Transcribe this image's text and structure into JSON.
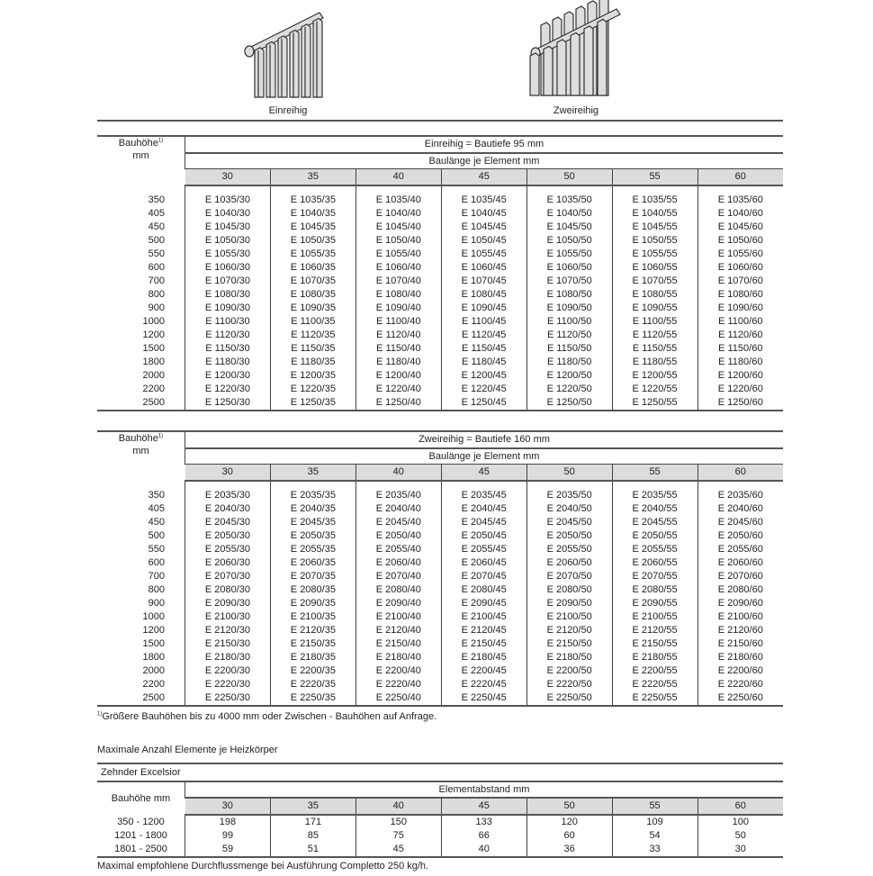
{
  "figures": {
    "single_label": "Einreihig",
    "double_label": "Zweireihig"
  },
  "table1": {
    "rowhead": "Bauhöhe",
    "rowhead_sup": "1)",
    "rowhead_unit": "mm",
    "title": "Einreihig = Bautiefe 95 mm",
    "subtitle": "Baulänge je Element mm",
    "cols": [
      "30",
      "35",
      "40",
      "45",
      "50",
      "55",
      "60"
    ],
    "rows": [
      [
        "350",
        "E 1035/30",
        "E 1035/35",
        "E 1035/40",
        "E 1035/45",
        "E 1035/50",
        "E 1035/55",
        "E 1035/60"
      ],
      [
        "405",
        "E 1040/30",
        "E 1040/35",
        "E 1040/40",
        "E 1040/45",
        "E 1040/50",
        "E 1040/55",
        "E 1040/60"
      ],
      [
        "450",
        "E 1045/30",
        "E 1045/35",
        "E 1045/40",
        "E 1045/45",
        "E 1045/50",
        "E 1045/55",
        "E 1045/60"
      ],
      [
        "500",
        "E 1050/30",
        "E 1050/35",
        "E 1050/40",
        "E 1050/45",
        "E 1050/50",
        "E 1050/55",
        "E 1050/60"
      ],
      [
        "550",
        "E 1055/30",
        "E 1055/35",
        "E 1055/40",
        "E 1055/45",
        "E 1055/50",
        "E 1055/55",
        "E 1055/60"
      ],
      [
        "600",
        "E 1060/30",
        "E 1060/35",
        "E 1060/40",
        "E 1060/45",
        "E 1060/50",
        "E 1060/55",
        "E 1060/60"
      ],
      [
        "700",
        "E 1070/30",
        "E 1070/35",
        "E 1070/40",
        "E 1070/45",
        "E 1070/50",
        "E 1070/55",
        "E 1070/60"
      ],
      [
        "800",
        "E 1080/30",
        "E 1080/35",
        "E 1080/40",
        "E 1080/45",
        "E 1080/50",
        "E 1080/55",
        "E 1080/60"
      ],
      [
        "900",
        "E 1090/30",
        "E 1090/35",
        "E 1090/40",
        "E 1090/45",
        "E 1090/50",
        "E 1090/55",
        "E 1090/60"
      ],
      [
        "1000",
        "E 1100/30",
        "E 1100/35",
        "E 1100/40",
        "E 1100/45",
        "E 1100/50",
        "E 1100/55",
        "E 1100/60"
      ],
      [
        "1200",
        "E 1120/30",
        "E 1120/35",
        "E 1120/40",
        "E 1120/45",
        "E 1120/50",
        "E 1120/55",
        "E 1120/60"
      ],
      [
        "1500",
        "E 1150/30",
        "E 1150/35",
        "E 1150/40",
        "E 1150/45",
        "E 1150/50",
        "E 1150/55",
        "E 1150/60"
      ],
      [
        "1800",
        "E 1180/30",
        "E 1180/35",
        "E 1180/40",
        "E 1180/45",
        "E 1180/50",
        "E 1180/55",
        "E 1180/60"
      ],
      [
        "2000",
        "E 1200/30",
        "E 1200/35",
        "E 1200/40",
        "E 1200/45",
        "E 1200/50",
        "E 1200/55",
        "E 1200/60"
      ],
      [
        "2200",
        "E 1220/30",
        "E 1220/35",
        "E 1220/40",
        "E 1220/45",
        "E 1220/50",
        "E 1220/55",
        "E 1220/60"
      ],
      [
        "2500",
        "E 1250/30",
        "E 1250/35",
        "E 1250/40",
        "E 1250/45",
        "E 1250/50",
        "E 1250/55",
        "E 1250/60"
      ]
    ]
  },
  "table2": {
    "rowhead": "Bauhöhe",
    "rowhead_sup": "1)",
    "rowhead_unit": "mm",
    "title": "Zweireihig = Bautiefe 160 mm",
    "subtitle": "Baulänge je Element mm",
    "cols": [
      "30",
      "35",
      "40",
      "45",
      "50",
      "55",
      "60"
    ],
    "rows": [
      [
        "350",
        "E 2035/30",
        "E 2035/35",
        "E 2035/40",
        "E 2035/45",
        "E 2035/50",
        "E 2035/55",
        "E 2035/60"
      ],
      [
        "405",
        "E 2040/30",
        "E 2040/35",
        "E 2040/40",
        "E 2040/45",
        "E 2040/50",
        "E 2040/55",
        "E 2040/60"
      ],
      [
        "450",
        "E 2045/30",
        "E 2045/35",
        "E 2045/40",
        "E 2045/45",
        "E 2045/50",
        "E 2045/55",
        "E 2045/60"
      ],
      [
        "500",
        "E 2050/30",
        "E 2050/35",
        "E 2050/40",
        "E 2050/45",
        "E 2050/50",
        "E 2050/55",
        "E 2050/60"
      ],
      [
        "550",
        "E 2055/30",
        "E 2055/35",
        "E 2055/40",
        "E 2055/45",
        "E 2055/50",
        "E 2055/55",
        "E 2055/60"
      ],
      [
        "600",
        "E 2060/30",
        "E 2060/35",
        "E 2060/40",
        "E 2060/45",
        "E 2060/50",
        "E 2060/55",
        "E 2060/60"
      ],
      [
        "700",
        "E 2070/30",
        "E 2070/35",
        "E 2070/40",
        "E 2070/45",
        "E 2070/50",
        "E 2070/55",
        "E 2070/60"
      ],
      [
        "800",
        "E 2080/30",
        "E 2080/35",
        "E 2080/40",
        "E 2080/45",
        "E 2080/50",
        "E 2080/55",
        "E 2080/60"
      ],
      [
        "900",
        "E 2090/30",
        "E 2090/35",
        "E 2090/40",
        "E 2090/45",
        "E 2090/50",
        "E 2090/55",
        "E 2090/60"
      ],
      [
        "1000",
        "E 2100/30",
        "E 2100/35",
        "E 2100/40",
        "E 2100/45",
        "E 2100/50",
        "E 2100/55",
        "E 2100/60"
      ],
      [
        "1200",
        "E 2120/30",
        "E 2120/35",
        "E 2120/40",
        "E 2120/45",
        "E 2120/50",
        "E 2120/55",
        "E 2120/60"
      ],
      [
        "1500",
        "E 2150/30",
        "E 2150/35",
        "E 2150/40",
        "E 2150/45",
        "E 2150/50",
        "E 2150/55",
        "E 2150/60"
      ],
      [
        "1800",
        "E 2180/30",
        "E 2180/35",
        "E 2180/40",
        "E 2180/45",
        "E 2180/50",
        "E 2180/55",
        "E 2180/60"
      ],
      [
        "2000",
        "E 2200/30",
        "E 2200/35",
        "E 2200/40",
        "E 2200/45",
        "E 2200/50",
        "E 2200/55",
        "E 2200/60"
      ],
      [
        "2200",
        "E 2220/30",
        "E 2220/35",
        "E 2220/40",
        "E 2220/45",
        "E 2220/50",
        "E 2220/55",
        "E 2220/60"
      ],
      [
        "2500",
        "E 2250/30",
        "E 2250/35",
        "E 2250/40",
        "E 2250/45",
        "E 2250/50",
        "E 2250/55",
        "E 2250/60"
      ]
    ]
  },
  "footnote": {
    "sup": "1)",
    "text": "Größere Bauhöhen bis zu 4000 mm oder Zwischen - Bauhöhen auf Anfrage."
  },
  "max_section": {
    "heading": "Maximale Anzahl Elemente je Heizkörper",
    "product": "Zehnder Excelsior",
    "rowhead": "Bauhöhe mm",
    "title": "Elementabstand mm",
    "cols": [
      "30",
      "35",
      "40",
      "45",
      "50",
      "55",
      "60"
    ],
    "rows": [
      [
        "350 - 1200",
        "198",
        "171",
        "150",
        "133",
        "120",
        "109",
        "100"
      ],
      [
        "1201 - 1800",
        "99",
        "85",
        "75",
        "66",
        "60",
        "54",
        "50"
      ],
      [
        "1801 - 2500",
        "59",
        "51",
        "45",
        "40",
        "36",
        "33",
        "30"
      ]
    ],
    "note": "Maximal empfohlene Durchflussmenge bei Ausführung Completto 250 kg/h."
  }
}
